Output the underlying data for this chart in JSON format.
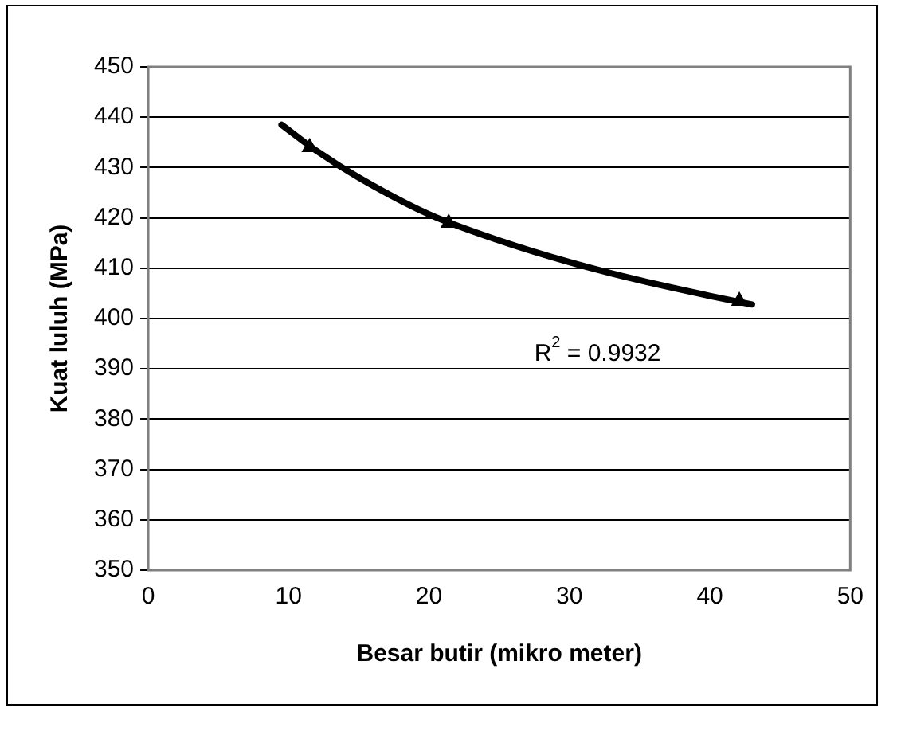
{
  "chart_data": {
    "type": "scatter",
    "xlabel": "Besar butir (mikro meter)",
    "ylabel": "Kuat luluh (MPa)",
    "xlim": [
      0,
      50
    ],
    "xticks": [
      0,
      10,
      20,
      30,
      40,
      50
    ],
    "ylim": [
      350,
      450
    ],
    "yticks": [
      350,
      360,
      370,
      380,
      390,
      400,
      410,
      420,
      430,
      440,
      450
    ],
    "grid": "y",
    "legend": false,
    "marker": "triangle",
    "series": [
      {
        "type": "scatter",
        "color": "#000000",
        "x": [
          11.5,
          21.4,
          42.1
        ],
        "values": [
          434,
          419,
          403.5
        ]
      },
      {
        "type": "line",
        "color": "#000000",
        "marker": "none",
        "x": [
          9.5,
          12,
          15,
          20,
          25,
          30,
          35,
          40,
          43
        ],
        "values": [
          438.5,
          433.3,
          428,
          420.7,
          415.5,
          411.2,
          407.6,
          404.5,
          402.8
        ]
      }
    ],
    "annotations": [
      "R$^{2}$ = 0.9932"
    ]
  }
}
